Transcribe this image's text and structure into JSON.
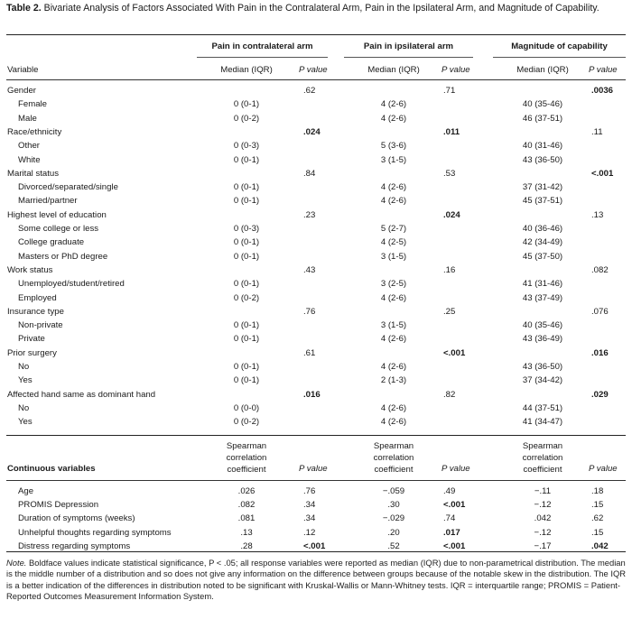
{
  "caption": {
    "label": "Table 2.",
    "text": "Bivariate Analysis of Factors Associated With Pain in the Contralateral Arm, Pain in the Ipsilateral Arm, and Magnitude of Capability."
  },
  "headers": {
    "group1": "Pain in contralateral arm",
    "group2": "Pain in ipsilateral arm",
    "group3": "Magnitude of capability",
    "variable": "Variable",
    "median_iqr": "Median (IQR)",
    "p_value": "P value"
  },
  "categorical_rows": [
    {
      "label": "Gender",
      "sub": false,
      "m1": "",
      "p1": ".62",
      "b1": false,
      "m2": "",
      "p2": ".71",
      "b2": false,
      "m3": "",
      "p3": ".0036",
      "b3": true
    },
    {
      "label": "Female",
      "sub": true,
      "m1": "0 (0-1)",
      "p1": "",
      "b1": false,
      "m2": "4 (2-6)",
      "p2": "",
      "b2": false,
      "m3": "40 (35-46)",
      "p3": "",
      "b3": false
    },
    {
      "label": "Male",
      "sub": true,
      "m1": "0 (0-2)",
      "p1": "",
      "b1": false,
      "m2": "4 (2-6)",
      "p2": "",
      "b2": false,
      "m3": "46 (37-51)",
      "p3": "",
      "b3": false
    },
    {
      "label": "Race/ethnicity",
      "sub": false,
      "m1": "",
      "p1": ".024",
      "b1": true,
      "m2": "",
      "p2": ".011",
      "b2": true,
      "m3": "",
      "p3": ".11",
      "b3": false
    },
    {
      "label": "Other",
      "sub": true,
      "m1": "0 (0-3)",
      "p1": "",
      "b1": false,
      "m2": "5 (3-6)",
      "p2": "",
      "b2": false,
      "m3": "40 (31-46)",
      "p3": "",
      "b3": false
    },
    {
      "label": "White",
      "sub": true,
      "m1": "0 (0-1)",
      "p1": "",
      "b1": false,
      "m2": "3 (1-5)",
      "p2": "",
      "b2": false,
      "m3": "43 (36-50)",
      "p3": "",
      "b3": false
    },
    {
      "label": "Marital status",
      "sub": false,
      "m1": "",
      "p1": ".84",
      "b1": false,
      "m2": "",
      "p2": ".53",
      "b2": false,
      "m3": "",
      "p3": "<.001",
      "b3": true
    },
    {
      "label": "Divorced/separated/single",
      "sub": true,
      "m1": "0 (0-1)",
      "p1": "",
      "b1": false,
      "m2": "4 (2-6)",
      "p2": "",
      "b2": false,
      "m3": "37 (31-42)",
      "p3": "",
      "b3": false
    },
    {
      "label": "Married/partner",
      "sub": true,
      "m1": "0 (0-1)",
      "p1": "",
      "b1": false,
      "m2": "4 (2-6)",
      "p2": "",
      "b2": false,
      "m3": "45 (37-51)",
      "p3": "",
      "b3": false
    },
    {
      "label": "Highest level of education",
      "sub": false,
      "m1": "",
      "p1": ".23",
      "b1": false,
      "m2": "",
      "p2": ".024",
      "b2": true,
      "m3": "",
      "p3": ".13",
      "b3": false
    },
    {
      "label": "Some college or less",
      "sub": true,
      "m1": "0 (0-3)",
      "p1": "",
      "b1": false,
      "m2": "5 (2-7)",
      "p2": "",
      "b2": false,
      "m3": "40 (36-46)",
      "p3": "",
      "b3": false
    },
    {
      "label": "College graduate",
      "sub": true,
      "m1": "0 (0-1)",
      "p1": "",
      "b1": false,
      "m2": "4 (2-5)",
      "p2": "",
      "b2": false,
      "m3": "42 (34-49)",
      "p3": "",
      "b3": false
    },
    {
      "label": "Masters or PhD degree",
      "sub": true,
      "m1": "0 (0-1)",
      "p1": "",
      "b1": false,
      "m2": "3 (1-5)",
      "p2": "",
      "b2": false,
      "m3": "45 (37-50)",
      "p3": "",
      "b3": false
    },
    {
      "label": "Work status",
      "sub": false,
      "m1": "",
      "p1": ".43",
      "b1": false,
      "m2": "",
      "p2": ".16",
      "b2": false,
      "m3": "",
      "p3": ".082",
      "b3": false
    },
    {
      "label": "Unemployed/student/retired",
      "sub": true,
      "m1": "0 (0-1)",
      "p1": "",
      "b1": false,
      "m2": "3 (2-5)",
      "p2": "",
      "b2": false,
      "m3": "41 (31-46)",
      "p3": "",
      "b3": false
    },
    {
      "label": "Employed",
      "sub": true,
      "m1": "0 (0-2)",
      "p1": "",
      "b1": false,
      "m2": "4 (2-6)",
      "p2": "",
      "b2": false,
      "m3": "43 (37-49)",
      "p3": "",
      "b3": false
    },
    {
      "label": "Insurance type",
      "sub": false,
      "m1": "",
      "p1": ".76",
      "b1": false,
      "m2": "",
      "p2": ".25",
      "b2": false,
      "m3": "",
      "p3": ".076",
      "b3": false
    },
    {
      "label": "Non-private",
      "sub": true,
      "m1": "0 (0-1)",
      "p1": "",
      "b1": false,
      "m2": "3 (1-5)",
      "p2": "",
      "b2": false,
      "m3": "40 (35-46)",
      "p3": "",
      "b3": false
    },
    {
      "label": "Private",
      "sub": true,
      "m1": "0 (0-1)",
      "p1": "",
      "b1": false,
      "m2": "4 (2-6)",
      "p2": "",
      "b2": false,
      "m3": "43 (36-49)",
      "p3": "",
      "b3": false
    },
    {
      "label": "Prior surgery",
      "sub": false,
      "m1": "",
      "p1": ".61",
      "b1": false,
      "m2": "",
      "p2": "<.001",
      "b2": true,
      "m3": "",
      "p3": ".016",
      "b3": true
    },
    {
      "label": "No",
      "sub": true,
      "m1": "0 (0-1)",
      "p1": "",
      "b1": false,
      "m2": "4 (2-6)",
      "p2": "",
      "b2": false,
      "m3": "43 (36-50)",
      "p3": "",
      "b3": false
    },
    {
      "label": "Yes",
      "sub": true,
      "m1": "0 (0-1)",
      "p1": "",
      "b1": false,
      "m2": "2 (1-3)",
      "p2": "",
      "b2": false,
      "m3": "37 (34-42)",
      "p3": "",
      "b3": false
    },
    {
      "label": "Affected hand same as dominant hand",
      "sub": false,
      "m1": "",
      "p1": ".016",
      "b1": true,
      "m2": "",
      "p2": ".82",
      "b2": false,
      "m3": "",
      "p3": ".029",
      "b3": true
    },
    {
      "label": "No",
      "sub": true,
      "m1": "0 (0-0)",
      "p1": "",
      "b1": false,
      "m2": "4 (2-6)",
      "p2": "",
      "b2": false,
      "m3": "44 (37-51)",
      "p3": "",
      "b3": false
    },
    {
      "label": "Yes",
      "sub": true,
      "m1": "0 (0-2)",
      "p1": "",
      "b1": false,
      "m2": "4 (2-6)",
      "p2": "",
      "b2": false,
      "m3": "41 (34-47)",
      "p3": "",
      "b3": false
    }
  ],
  "continuous_header": {
    "label": "Continuous variables",
    "coef_lines": [
      "Spearman",
      "correlation",
      "coefficient"
    ],
    "p_value": "P value"
  },
  "continuous_rows": [
    {
      "label": "Age",
      "c1": ".026",
      "p1": ".76",
      "b1": false,
      "c2": "−.059",
      "p2": ".49",
      "b2": false,
      "c3": "−.11",
      "p3": ".18",
      "b3": false
    },
    {
      "label": "PROMIS Depression",
      "c1": ".082",
      "p1": ".34",
      "b1": false,
      "c2": ".30",
      "p2": "<.001",
      "b2": true,
      "c3": "−.12",
      "p3": ".15",
      "b3": false
    },
    {
      "label": "Duration of symptoms (weeks)",
      "c1": ".081",
      "p1": ".34",
      "b1": false,
      "c2": "−.029",
      "p2": ".74",
      "b2": false,
      "c3": ".042",
      "p3": ".62",
      "b3": false
    },
    {
      "label": "Unhelpful thoughts regarding symptoms",
      "c1": ".13",
      "p1": ".12",
      "b1": false,
      "c2": ".20",
      "p2": ".017",
      "b2": true,
      "c3": "−.12",
      "p3": ".15",
      "b3": false
    },
    {
      "label": "Distress regarding symptoms",
      "c1": ".28",
      "p1": "<.001",
      "b1": true,
      "c2": ".52",
      "p2": "<.001",
      "b2": true,
      "c3": "−.17",
      "p3": ".042",
      "b3": true
    }
  ],
  "note": {
    "label": "Note.",
    "text": "Boldface values indicate statistical significance, P < .05; all response variables were reported as median (IQR) due to non-parametrical distribution. The median is the middle number of a distribution and so does not give any information on the difference between groups because of the notable skew in the distribution. The IQR is a better indication of the differences in distribution noted to be significant with Kruskal-Wallis or Mann-Whitney tests. IQR = interquartile range; PROMIS = Patient-Reported Outcomes Measurement Information System."
  }
}
